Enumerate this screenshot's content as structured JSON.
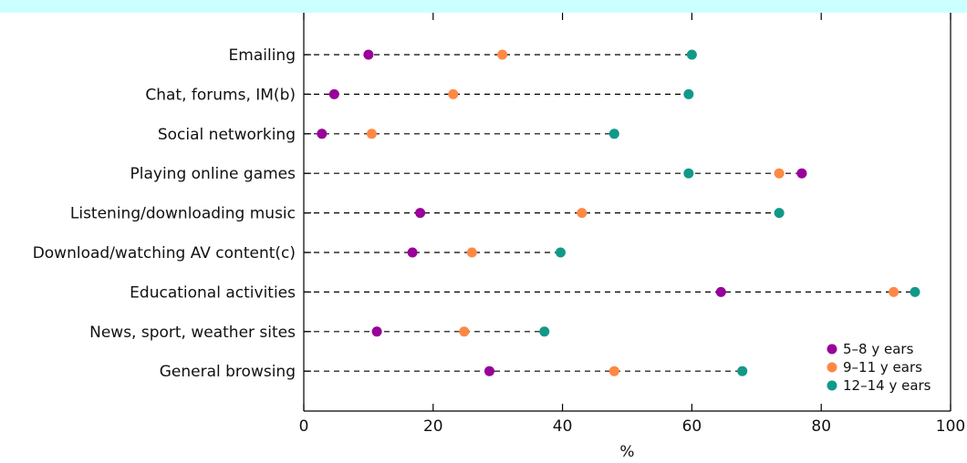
{
  "chart_data": {
    "type": "scatter",
    "title": "",
    "xlabel": "%",
    "ylabel": "",
    "xlim": [
      0,
      100
    ],
    "x_ticks": [
      0,
      20,
      40,
      60,
      80,
      100
    ],
    "x_tick_labels": [
      "0",
      "20",
      "40",
      "60",
      "80",
      "100"
    ],
    "grid": false,
    "legend_position": "bottom-right",
    "categories": [
      "Emailing",
      "Chat, forums, IM(b)",
      "Social networking",
      "Playing online games",
      "Listening/downloading music",
      "Download/watching AV content(c)",
      "Educational activities",
      "News, sport, weather sites",
      "General browsing"
    ],
    "series": [
      {
        "name": "5–8 y ears",
        "color": "#990099",
        "values": [
          10,
          4.7,
          2.8,
          77,
          18,
          16.8,
          64.5,
          11.3,
          28.7
        ]
      },
      {
        "name": "9–11 y ears",
        "color": "#ff8844",
        "values": [
          30.7,
          23.1,
          10.5,
          73.5,
          43,
          26,
          91.2,
          24.8,
          48
        ]
      },
      {
        "name": "12–14 y ears",
        "color": "#119988",
        "values": [
          60,
          59.5,
          48,
          59.5,
          73.5,
          39.7,
          94.5,
          37.2,
          67.8
        ]
      }
    ]
  }
}
